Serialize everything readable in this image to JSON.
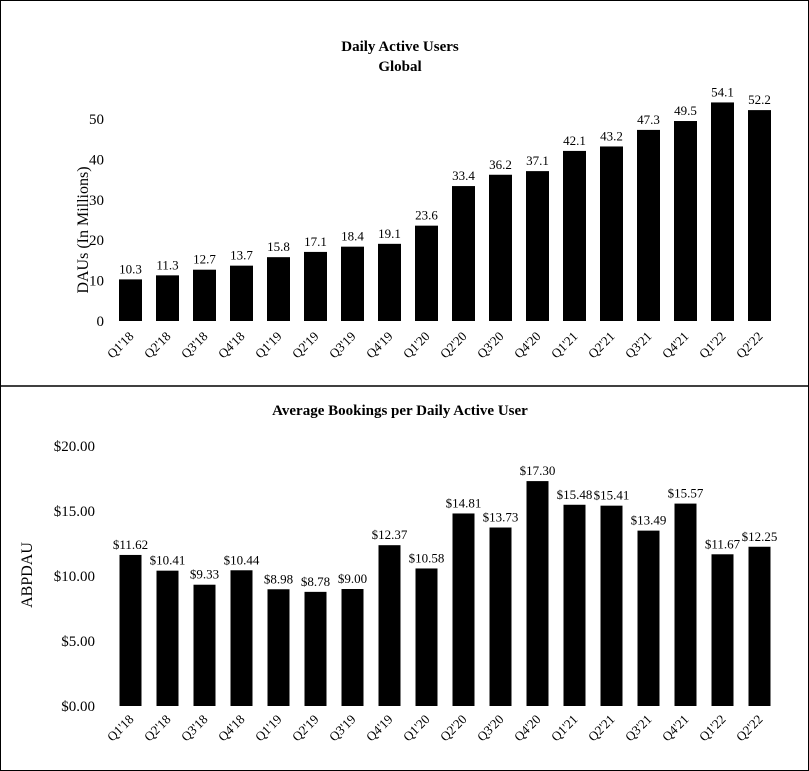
{
  "chart_data": [
    {
      "type": "bar",
      "title": "Daily Active Users",
      "subtitle": "Global",
      "xlabel": "",
      "ylabel": "DAUs (In Millions)",
      "ylim": [
        0,
        50
      ],
      "yticks": [
        "0",
        "10",
        "20",
        "30",
        "40",
        "50"
      ],
      "grid": false,
      "categories": [
        "Q1'18",
        "Q2'18",
        "Q3'18",
        "Q4'18",
        "Q1'19",
        "Q2'19",
        "Q3'19",
        "Q4'19",
        "Q1'20",
        "Q2'20",
        "Q3'20",
        "Q4'20",
        "Q1'21",
        "Q2'21",
        "Q3'21",
        "Q4'21",
        "Q1'22",
        "Q2'22"
      ],
      "values": [
        10.3,
        11.3,
        12.7,
        13.7,
        15.8,
        17.1,
        18.4,
        19.1,
        23.6,
        33.4,
        36.2,
        37.1,
        42.1,
        43.2,
        47.3,
        49.5,
        54.1,
        52.2
      ],
      "labels": [
        "10.3",
        "11.3",
        "12.7",
        "13.7",
        "15.8",
        "17.1",
        "18.4",
        "19.1",
        "23.6",
        "33.4",
        "36.2",
        "37.1",
        "42.1",
        "43.2",
        "47.3",
        "49.5",
        "54.1",
        "52.2"
      ],
      "bar_color": "#000000"
    },
    {
      "type": "bar",
      "title": "Average Bookings per Daily Active User",
      "xlabel": "",
      "ylabel": "ABPDAU",
      "ylim": [
        0,
        20
      ],
      "yticks": [
        "$0.00",
        "$5.00",
        "$10.00",
        "$15.00",
        "$20.00"
      ],
      "grid": false,
      "categories": [
        "Q1'18",
        "Q2'18",
        "Q3'18",
        "Q4'18",
        "Q1'19",
        "Q2'19",
        "Q3'19",
        "Q4'19",
        "Q1'20",
        "Q2'20",
        "Q3'20",
        "Q4'20",
        "Q1'21",
        "Q2'21",
        "Q3'21",
        "Q4'21",
        "Q1'22",
        "Q2'22"
      ],
      "values": [
        11.62,
        10.41,
        9.33,
        10.44,
        8.98,
        8.78,
        9.0,
        12.37,
        10.58,
        14.81,
        13.73,
        17.3,
        15.48,
        15.41,
        13.49,
        15.57,
        11.67,
        12.25
      ],
      "labels": [
        "$11.62",
        "$10.41",
        "$9.33",
        "$10.44",
        "$8.98",
        "$8.78",
        "$9.00",
        "$12.37",
        "$10.58",
        "$14.81",
        "$13.73",
        "$17.30",
        "$15.48",
        "$15.41",
        "$13.49",
        "$15.57",
        "$11.67",
        "$12.25"
      ],
      "bar_color": "#000000"
    }
  ]
}
